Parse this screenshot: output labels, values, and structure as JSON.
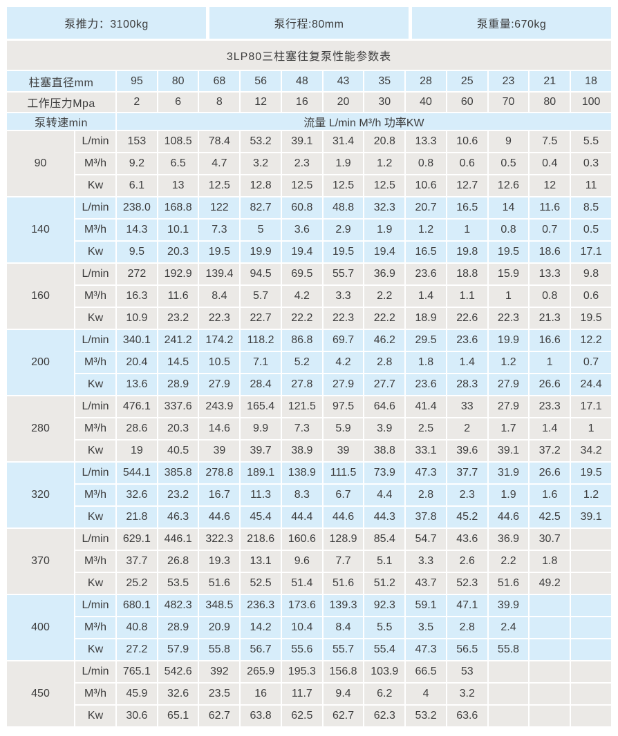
{
  "header": {
    "thrust": "泵推力：3100kg",
    "stroke": "泵行程:80mm",
    "weight": "泵重量:670kg"
  },
  "title": "3LP80三柱塞往复泵性能参数表",
  "table": {
    "diameter_label": "柱塞直径mm",
    "diameters": [
      "95",
      "80",
      "68",
      "56",
      "48",
      "43",
      "35",
      "28",
      "25",
      "23",
      "21",
      "18"
    ],
    "pressure_label": "工作压力Mpa",
    "pressures": [
      "2",
      "6",
      "8",
      "12",
      "16",
      "20",
      "30",
      "40",
      "60",
      "70",
      "80",
      "100"
    ],
    "speed_label": "泵转速min",
    "flow_header": "流量 L/min M³/h  功率KW",
    "unit_labels": [
      "L/min",
      "M³/h",
      "Kw"
    ],
    "groups": [
      {
        "speed": "90",
        "lmin": [
          "153",
          "108.5",
          "78.4",
          "53.2",
          "39.1",
          "31.4",
          "20.8",
          "13.3",
          "10.6",
          "9",
          "7.5",
          "5.5"
        ],
        "m3h": [
          "9.2",
          "6.5",
          "4.7",
          "3.2",
          "2.3",
          "1.9",
          "1.2",
          "0.8",
          "0.6",
          "0.5",
          "0.4",
          "0.3"
        ],
        "kw": [
          "6.1",
          "13",
          "12.5",
          "12.8",
          "12.5",
          "12.5",
          "12.5",
          "10.6",
          "12.7",
          "12.6",
          "12",
          "11"
        ]
      },
      {
        "speed": "140",
        "lmin": [
          "238.0",
          "168.8",
          "122",
          "82.7",
          "60.8",
          "48.8",
          "32.3",
          "20.7",
          "16.5",
          "14",
          "11.6",
          "8.5"
        ],
        "m3h": [
          "14.3",
          "10.1",
          "7.3",
          "5",
          "3.6",
          "2.9",
          "1.9",
          "1.2",
          "1",
          "0.8",
          "0.7",
          "0.5"
        ],
        "kw": [
          "9.5",
          "20.3",
          "19.5",
          "19.9",
          "19.4",
          "19.5",
          "19.4",
          "16.5",
          "19.8",
          "19.5",
          "18.6",
          "17.1"
        ]
      },
      {
        "speed": "160",
        "lmin": [
          "272",
          "192.9",
          "139.4",
          "94.5",
          "69.5",
          "55.7",
          "36.9",
          "23.6",
          "18.8",
          "15.9",
          "13.3",
          "9.8"
        ],
        "m3h": [
          "16.3",
          "11.6",
          "8.4",
          "5.7",
          "4.2",
          "3.3",
          "2.2",
          "1.4",
          "1.1",
          "1",
          "0.8",
          "0.6"
        ],
        "kw": [
          "10.9",
          "23.2",
          "22.3",
          "22.7",
          "22.2",
          "22.3",
          "22.2",
          "18.9",
          "22.6",
          "22.3",
          "21.3",
          "19.5"
        ]
      },
      {
        "speed": "200",
        "lmin": [
          "340.1",
          "241.2",
          "174.2",
          "118.2",
          "86.8",
          "69.7",
          "46.2",
          "29.5",
          "23.6",
          "19.9",
          "16.6",
          "12.2"
        ],
        "m3h": [
          "20.4",
          "14.5",
          "10.5",
          "7.1",
          "5.2",
          "4.2",
          "2.8",
          "1.8",
          "1.4",
          "1.2",
          "1",
          "0.7"
        ],
        "kw": [
          "13.6",
          "28.9",
          "27.9",
          "28.4",
          "27.8",
          "27.9",
          "27.7",
          "23.6",
          "28.3",
          "27.9",
          "26.6",
          "24.4"
        ]
      },
      {
        "speed": "280",
        "lmin": [
          "476.1",
          "337.6",
          "243.9",
          "165.4",
          "121.5",
          "97.5",
          "64.6",
          "41.4",
          "33",
          "27.9",
          "23.3",
          "17.1"
        ],
        "m3h": [
          "28.6",
          "20.3",
          "14.6",
          "9.9",
          "7.3",
          "5.9",
          "3.9",
          "2.5",
          "2",
          "1.7",
          "1.4",
          "1"
        ],
        "kw": [
          "19",
          "40.5",
          "39",
          "39.7",
          "38.9",
          "39",
          "38.8",
          "33.1",
          "39.6",
          "39.1",
          "37.2",
          "34.2"
        ]
      },
      {
        "speed": "320",
        "lmin": [
          "544.1",
          "385.8",
          "278.8",
          "189.1",
          "138.9",
          "111.5",
          "73.9",
          "47.3",
          "37.7",
          "31.9",
          "26.6",
          "19.5"
        ],
        "m3h": [
          "32.6",
          "23.2",
          "16.7",
          "11.3",
          "8.3",
          "6.7",
          "4.4",
          "2.8",
          "2.3",
          "1.9",
          "1.6",
          "1.2"
        ],
        "kw": [
          "21.8",
          "46.3",
          "44.6",
          "45.4",
          "44.4",
          "44.6",
          "44.3",
          "37.8",
          "45.2",
          "44.6",
          "42.5",
          "39.1"
        ]
      },
      {
        "speed": "370",
        "lmin": [
          "629.1",
          "446.1",
          "322.3",
          "218.6",
          "160.6",
          "128.9",
          "85.4",
          "54.7",
          "43.6",
          "36.9",
          "30.7",
          ""
        ],
        "m3h": [
          "37.7",
          "26.8",
          "19.3",
          "13.1",
          "9.6",
          "7.7",
          "5.1",
          "3.3",
          "2.6",
          "2.2",
          "1.8",
          ""
        ],
        "kw": [
          "25.2",
          "53.5",
          "51.6",
          "52.5",
          "51.4",
          "51.6",
          "51.2",
          "43.7",
          "52.3",
          "51.6",
          "49.2",
          ""
        ]
      },
      {
        "speed": "400",
        "lmin": [
          "680.1",
          "482.3",
          "348.5",
          "236.3",
          "173.6",
          "139.3",
          "92.3",
          "59.1",
          "47.1",
          "39.9",
          "",
          ""
        ],
        "m3h": [
          "40.8",
          "28.9",
          "20.9",
          "14.2",
          "10.4",
          "8.4",
          "5.5",
          "3.5",
          "2.8",
          "2.4",
          "",
          ""
        ],
        "kw": [
          "27.2",
          "57.9",
          "55.8",
          "56.7",
          "55.6",
          "55.7",
          "55.4",
          "47.3",
          "56.5",
          "55.8",
          "",
          ""
        ]
      },
      {
        "speed": "450",
        "lmin": [
          "765.1",
          "542.6",
          "392",
          "265.9",
          "195.3",
          "156.8",
          "103.9",
          "66.5",
          "53",
          "",
          "",
          ""
        ],
        "m3h": [
          "45.9",
          "32.6",
          "23.5",
          "16",
          "11.7",
          "9.4",
          "6.2",
          "4",
          "3.2",
          "",
          "",
          ""
        ],
        "kw": [
          "30.6",
          "65.1",
          "62.7",
          "63.8",
          "62.5",
          "62.7",
          "62.3",
          "53.2",
          "63.6",
          "",
          "",
          ""
        ]
      }
    ]
  },
  "colors": {
    "cell_blue": "#d7edfa",
    "cell_gray": "#ebe9e6",
    "grid_white": "#ffffff",
    "text": "#3d3d3d"
  }
}
